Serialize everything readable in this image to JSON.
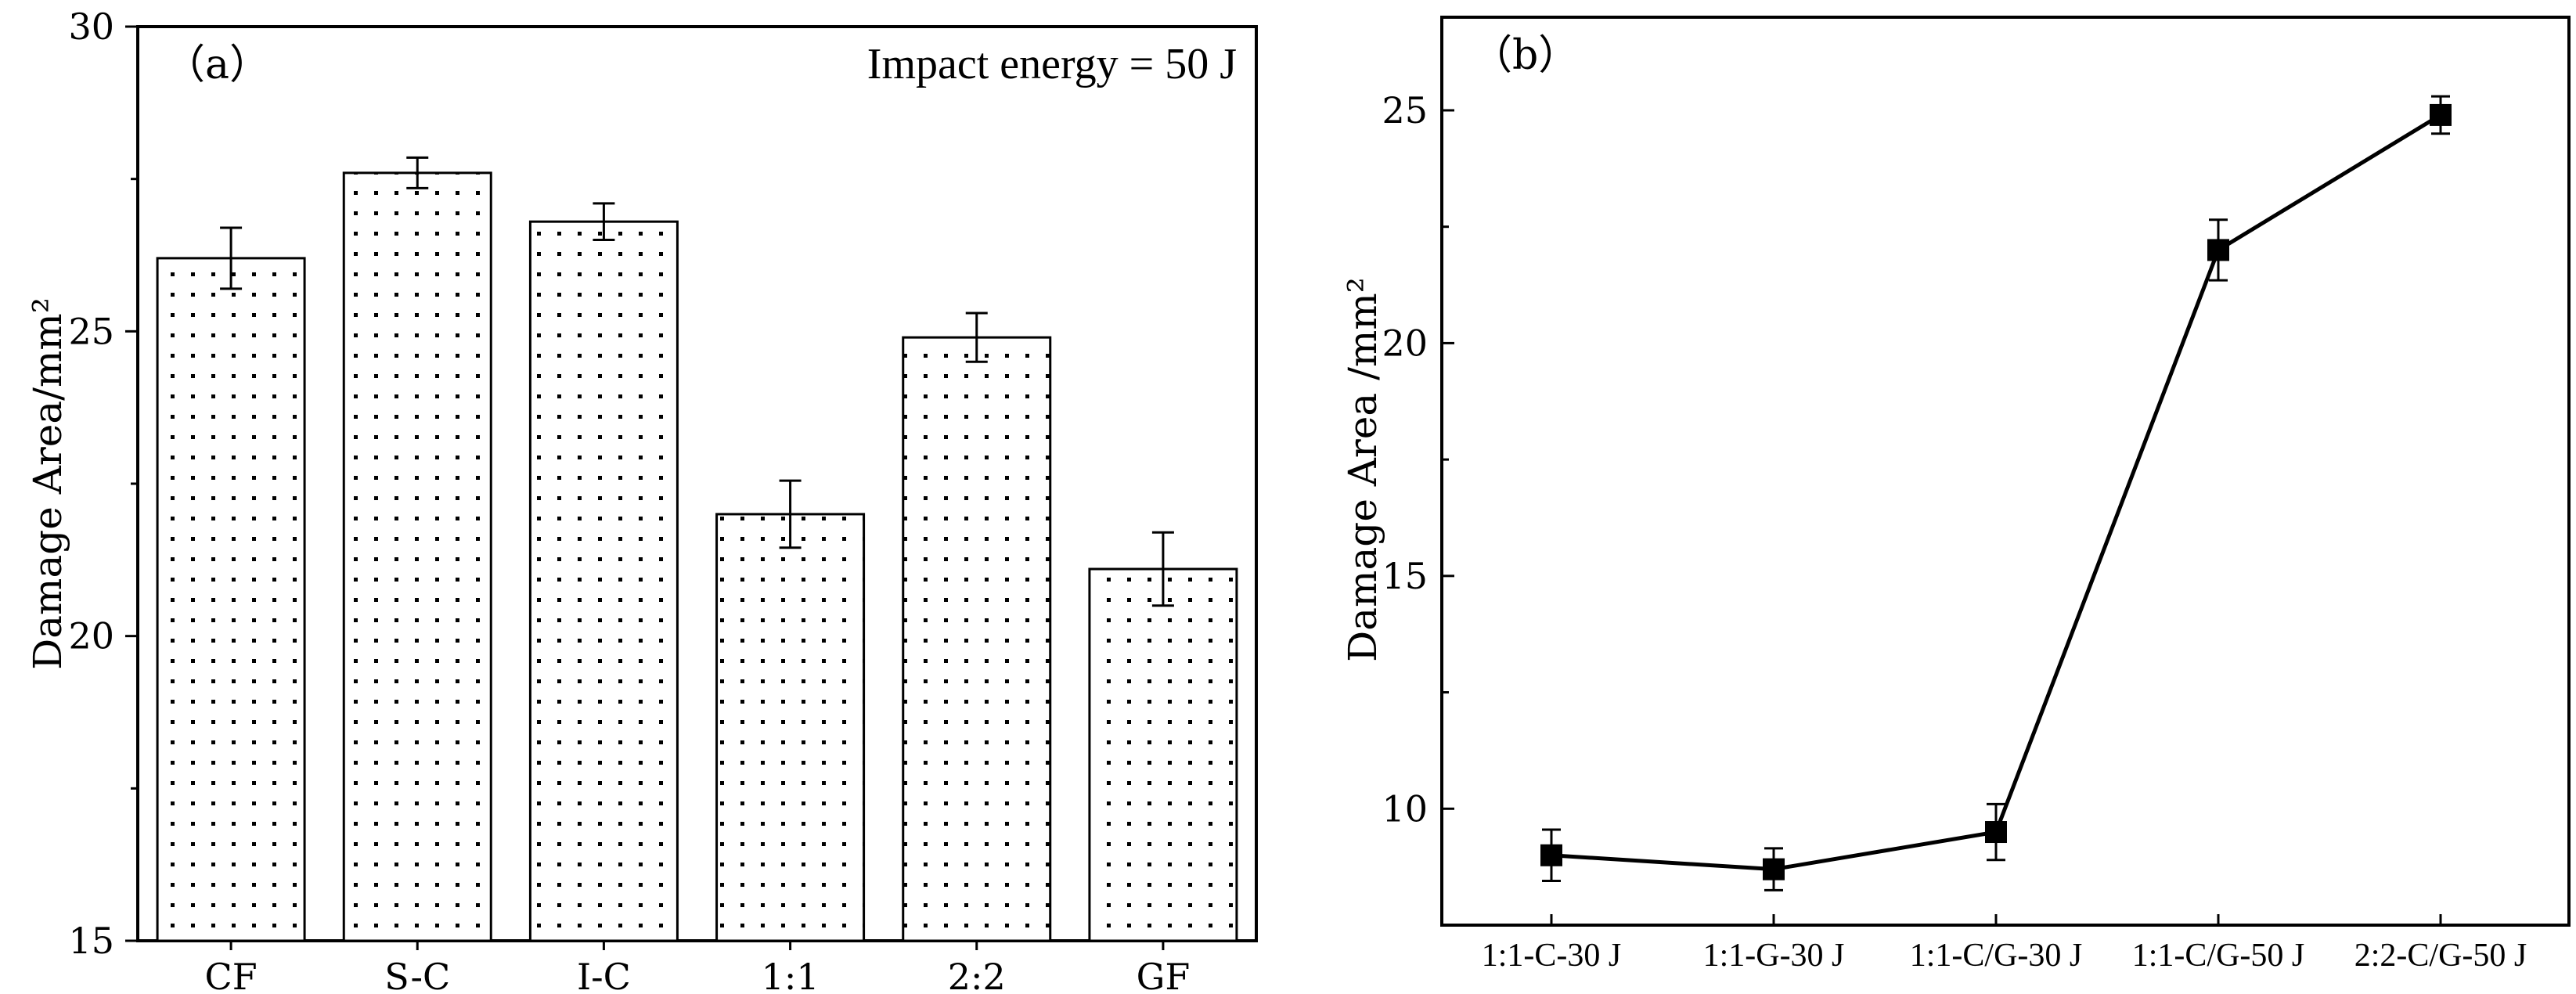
{
  "chart_data": [
    {
      "type": "bar",
      "panel_label": "（a）",
      "annotation": "Impact energy = 50 J",
      "title": "",
      "xlabel": "",
      "ylabel": "Damage Area/mm²",
      "categories": [
        "CF",
        "S-C",
        "I-C",
        "1:1",
        "2:2",
        "GF"
      ],
      "values": [
        26.2,
        27.6,
        26.8,
        22.0,
        24.9,
        21.1
      ],
      "errors": [
        0.5,
        0.25,
        0.3,
        0.55,
        0.4,
        0.6
      ],
      "ylim": [
        15,
        30
      ],
      "yticks": [
        15,
        20,
        25,
        30
      ],
      "ytick_labels": [
        "15",
        "20",
        "25",
        "30"
      ],
      "fill_pattern": "dots",
      "grid": false
    },
    {
      "type": "line",
      "panel_label": "（b）",
      "title": "",
      "xlabel": "",
      "ylabel": "Damage Area /mm²",
      "categories": [
        "1:1-C-30 J",
        "1:1-G-30 J",
        "1:1-C/G-30 J",
        "1:1-C/G-50 J",
        "2:2-C/G-50 J"
      ],
      "values": [
        9.0,
        8.7,
        9.5,
        22.0,
        24.9
      ],
      "errors": [
        0.55,
        0.45,
        0.6,
        0.65,
        0.4
      ],
      "ylim": [
        7.5,
        27
      ],
      "yticks": [
        10,
        15,
        20,
        25
      ],
      "ytick_labels": [
        "10",
        "15",
        "20",
        "25"
      ],
      "marker": "square",
      "grid": false
    }
  ]
}
